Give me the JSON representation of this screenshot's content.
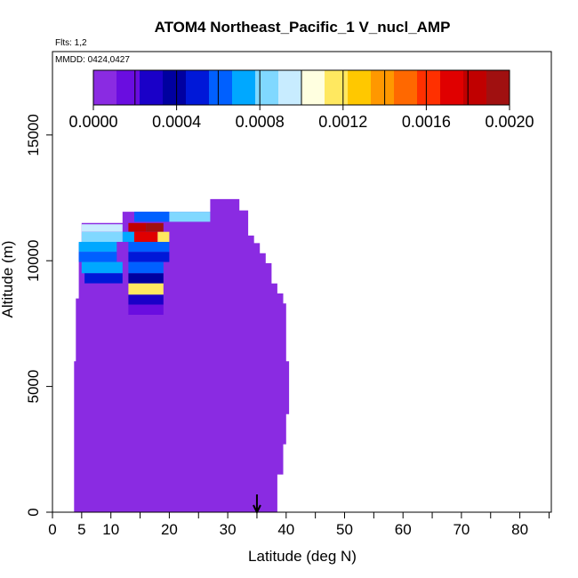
{
  "chart_data": {
    "type": "heatmap",
    "title": "ATOM4 Northeast_Pacific_1 V_nucl_AMP",
    "flights_label": "Flts: 1,2",
    "date_label": "MMDD: 0424,0427",
    "xlabel": "Latitude (deg N)",
    "ylabel": "Altitude (m)",
    "xlim": [
      0,
      85
    ],
    "ylim": [
      0,
      17500
    ],
    "x_ticks": [
      0,
      5,
      10,
      20,
      30,
      40,
      50,
      60,
      70,
      80
    ],
    "x_minor_ticks": [
      15,
      25,
      35,
      45,
      55,
      65,
      75,
      85
    ],
    "y_ticks": [
      0,
      5000,
      10000,
      15000
    ],
    "colorbar": {
      "min": 0.0,
      "max": 0.002,
      "tick_labels": [
        "0.0000",
        "0.0004",
        "0.0008",
        "0.0012",
        "0.0016",
        "0.0020"
      ],
      "tick_values": [
        0.0,
        0.0004,
        0.0008,
        0.0012,
        0.0016,
        0.002
      ],
      "colors": [
        "#8a2be2",
        "#6a0de0",
        "#1a00c8",
        "#0000a0",
        "#0018d8",
        "#0060ff",
        "#00a8ff",
        "#80d8ff",
        "#c8ecff",
        "#ffffe0",
        "#ffe860",
        "#ffc800",
        "#ff9800",
        "#ff6800",
        "#ff3000",
        "#e00000",
        "#c00000",
        "#a01010"
      ]
    },
    "background_color": "#8a2be2",
    "marker": {
      "latitude": 35,
      "label": "arrow"
    },
    "cells": [
      {
        "lat": 13,
        "lat2": 16,
        "alt": 11150,
        "alt2": 11500,
        "value": 0.00185
      },
      {
        "lat": 16,
        "lat2": 19,
        "alt": 11150,
        "alt2": 11500,
        "value": 0.0019
      },
      {
        "lat": 12,
        "lat2": 14,
        "alt": 10750,
        "alt2": 11150,
        "value": 0.0007
      },
      {
        "lat": 14,
        "lat2": 18,
        "alt": 10750,
        "alt2": 11150,
        "value": 0.00175
      },
      {
        "lat": 18,
        "lat2": 20,
        "alt": 10750,
        "alt2": 11150,
        "value": 0.0012
      },
      {
        "lat": 5,
        "lat2": 12,
        "alt": 11150,
        "alt2": 11450,
        "value": 0.0009
      },
      {
        "lat": 5,
        "lat2": 12,
        "alt": 10750,
        "alt2": 11150,
        "value": 0.0008
      },
      {
        "lat": 4.5,
        "lat2": 11,
        "alt": 10350,
        "alt2": 10750,
        "value": 0.00075
      },
      {
        "lat": 4.5,
        "lat2": 11,
        "alt": 9950,
        "alt2": 10350,
        "value": 0.0006
      },
      {
        "lat": 5,
        "lat2": 12,
        "alt": 9500,
        "alt2": 9950,
        "value": 0.0007
      },
      {
        "lat": 5.5,
        "lat2": 12,
        "alt": 9100,
        "alt2": 9500,
        "value": 0.0005
      },
      {
        "lat": 14,
        "lat2": 20,
        "alt": 11550,
        "alt2": 11950,
        "value": 0.0006
      },
      {
        "lat": 20,
        "lat2": 27,
        "alt": 11550,
        "alt2": 11950,
        "value": 0.0008
      },
      {
        "lat": 13,
        "lat2": 20,
        "alt": 10350,
        "alt2": 10750,
        "value": 0.0006
      },
      {
        "lat": 13,
        "lat2": 20,
        "alt": 9950,
        "alt2": 10350,
        "value": 0.0005
      },
      {
        "lat": 13,
        "lat2": 19,
        "alt": 9500,
        "alt2": 9950,
        "value": 0.0006
      },
      {
        "lat": 13,
        "lat2": 19,
        "alt": 9100,
        "alt2": 9500,
        "value": 0.0004
      },
      {
        "lat": 13,
        "lat2": 19,
        "alt": 8650,
        "alt2": 9100,
        "value": 0.0012
      },
      {
        "lat": 13,
        "lat2": 19,
        "alt": 8250,
        "alt2": 8650,
        "value": 0.0003
      },
      {
        "lat": 13,
        "lat2": 19,
        "alt": 7850,
        "alt2": 8250,
        "value": 0.0002
      },
      {
        "lat": 13,
        "lat2": 19,
        "alt": 7550,
        "alt2": 7850,
        "value": 0.0001
      }
    ]
  }
}
